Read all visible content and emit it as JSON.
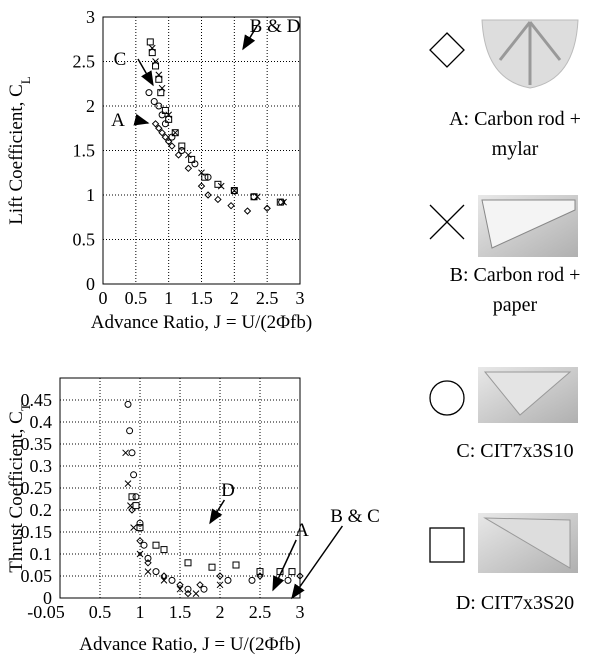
{
  "chart_data": [
    {
      "type": "scatter",
      "xlabel": "Advance Ratio, J = U/(2Φfb)",
      "ylabel": "Lift Coefficient, C",
      "ylabel_subscript": "L",
      "xlim": [
        0,
        3
      ],
      "ylim": [
        0,
        3
      ],
      "xticks": [
        0,
        0.5,
        1,
        1.5,
        2,
        2.5,
        3
      ],
      "yticks": [
        0,
        0.5,
        1,
        1.5,
        2,
        2.5,
        3
      ],
      "grid": true,
      "annotations": [
        "B & D",
        "C",
        "A"
      ],
      "series": [
        {
          "name": "A: Carbon rod + mylar",
          "marker": "diamond",
          "color": "#000000",
          "x": [
            0.8,
            0.85,
            0.9,
            0.95,
            1.0,
            1.05,
            1.15,
            1.3,
            1.5,
            1.6,
            1.75,
            1.95,
            2.2,
            2.5
          ],
          "values": [
            1.8,
            1.75,
            1.7,
            1.65,
            1.6,
            1.55,
            1.45,
            1.3,
            1.1,
            1.0,
            0.95,
            0.88,
            0.82,
            0.85
          ]
        },
        {
          "name": "B: Carbon rod + paper",
          "marker": "cross",
          "color": "#000000",
          "x": [
            0.75,
            0.8,
            0.85,
            0.9,
            1.0,
            1.1,
            1.3,
            1.5,
            1.8,
            2.0,
            2.35,
            2.75
          ],
          "values": [
            2.65,
            2.5,
            2.35,
            2.2,
            1.9,
            1.7,
            1.45,
            1.25,
            1.1,
            1.05,
            0.98,
            0.92
          ]
        },
        {
          "name": "C: CIT7x3S10",
          "marker": "circle",
          "color": "#000000",
          "x": [
            0.7,
            0.78,
            0.85,
            0.9,
            0.95,
            1.05,
            1.2,
            1.4,
            1.6,
            2.0,
            2.3,
            2.72
          ],
          "values": [
            2.15,
            2.05,
            2.0,
            1.9,
            1.8,
            1.65,
            1.5,
            1.35,
            1.2,
            1.05,
            0.98,
            0.92
          ]
        },
        {
          "name": "D: CIT7x3S20",
          "marker": "square",
          "color": "#000000",
          "x": [
            0.72,
            0.75,
            0.8,
            0.85,
            0.88,
            0.95,
            1.0,
            1.1,
            1.2,
            1.35,
            1.55,
            1.75,
            2.0,
            2.3,
            2.7
          ],
          "values": [
            2.72,
            2.6,
            2.45,
            2.3,
            2.15,
            1.95,
            1.85,
            1.7,
            1.55,
            1.4,
            1.2,
            1.12,
            1.05,
            0.98,
            0.92
          ]
        }
      ]
    },
    {
      "type": "scatter",
      "xlabel": "Advance Ratio, J = U/(2Φfb)",
      "ylabel": "Thrust Coefficient, C",
      "ylabel_subscript": "T",
      "xlim": [
        0,
        3
      ],
      "ylim": [
        0,
        0.5
      ],
      "xticks": [
        {
          "value": 0,
          "label": "-0.05"
        },
        0.5,
        1,
        1.5,
        2,
        2.5,
        3
      ],
      "yticks": [
        0,
        0.05,
        0.1,
        0.15,
        0.2,
        0.25,
        0.3,
        0.35,
        0.4,
        0.45
      ],
      "grid": true,
      "annotations": [
        "D",
        "A",
        "B & C"
      ],
      "series": [
        {
          "marker": "diamond",
          "color": "#000000",
          "x": [
            0.9,
            1.0,
            1.1,
            1.3,
            1.5,
            1.6,
            1.75,
            2.0,
            2.5,
            3.0
          ],
          "values": [
            0.2,
            0.13,
            0.08,
            0.05,
            0.03,
            0.01,
            0.03,
            0.05,
            0.05,
            0.05
          ]
        },
        {
          "marker": "cross",
          "color": "#000000",
          "x": [
            0.82,
            0.85,
            0.88,
            0.92,
            1.0,
            1.1,
            1.3,
            1.5,
            1.7,
            2.0
          ],
          "values": [
            0.33,
            0.26,
            0.21,
            0.16,
            0.1,
            0.06,
            0.04,
            0.02,
            0.01,
            0.03
          ]
        },
        {
          "marker": "circle",
          "color": "#000000",
          "x": [
            0.85,
            0.87,
            0.9,
            0.92,
            0.95,
            1.0,
            1.05,
            1.1,
            1.2,
            1.4,
            1.6,
            1.8,
            2.1,
            2.4,
            2.85
          ],
          "values": [
            0.44,
            0.38,
            0.33,
            0.28,
            0.23,
            0.17,
            0.12,
            0.09,
            0.06,
            0.04,
            0.02,
            0.02,
            0.04,
            0.04,
            0.04
          ]
        },
        {
          "marker": "square",
          "color": "#000000",
          "x": [
            0.9,
            0.95,
            1.0,
            1.2,
            1.3,
            1.6,
            1.9,
            2.2,
            2.5,
            2.75,
            2.9
          ],
          "values": [
            0.23,
            0.21,
            0.16,
            0.12,
            0.11,
            0.08,
            0.07,
            0.075,
            0.06,
            0.06,
            0.06
          ]
        }
      ]
    }
  ]
}
